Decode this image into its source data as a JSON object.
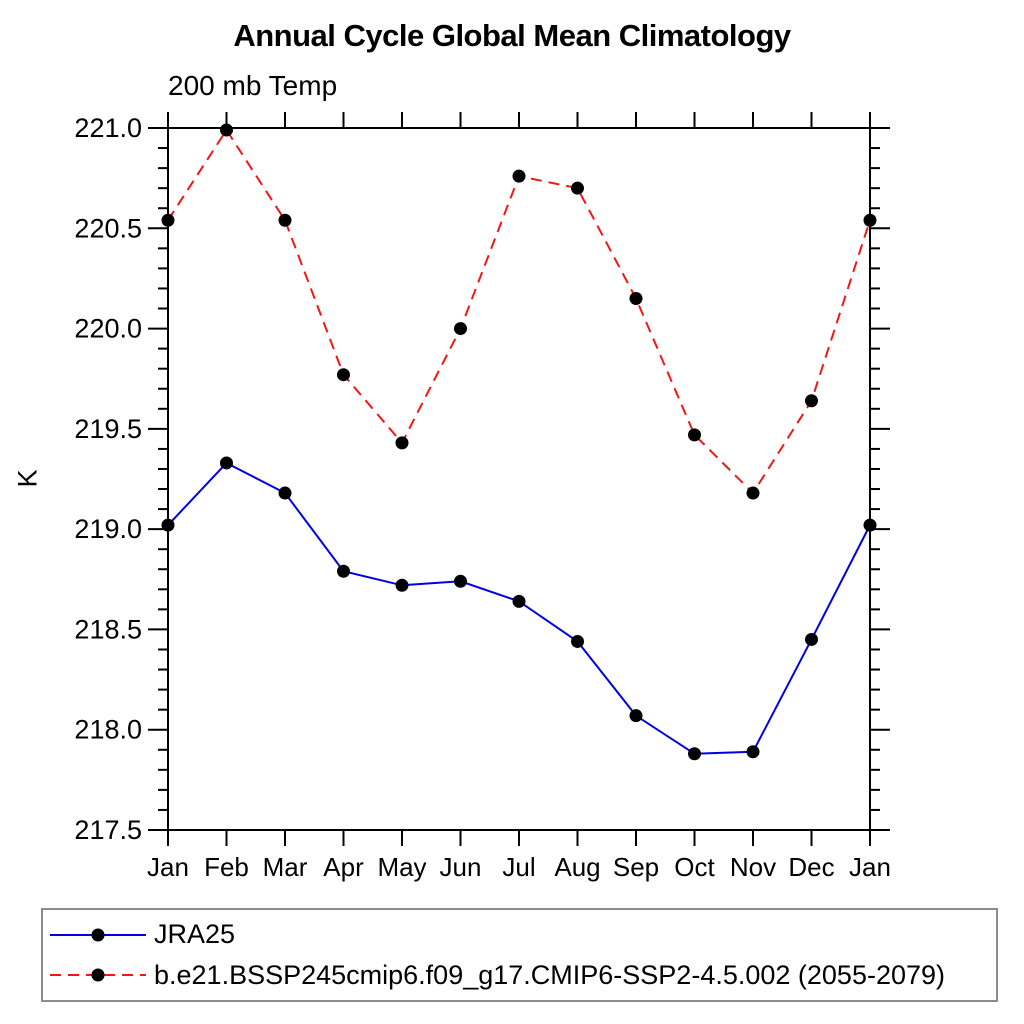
{
  "chart_data": {
    "type": "line",
    "title": "Annual Cycle Global Mean Climatology",
    "subtitle": "200 mb Temp",
    "ylabel": "K",
    "xlabel": "",
    "categories": [
      "Jan",
      "Feb",
      "Mar",
      "Apr",
      "May",
      "Jun",
      "Jul",
      "Aug",
      "Sep",
      "Oct",
      "Nov",
      "Dec",
      "Jan"
    ],
    "ylim": [
      217.5,
      221.0
    ],
    "yticks": [
      217.5,
      218.0,
      218.5,
      219.0,
      219.5,
      220.0,
      220.5,
      221.0
    ],
    "ytick_minor_step": 0.1,
    "grid": false,
    "axes_frame": true,
    "tick_direction": "out",
    "legend_position": "bottom",
    "marker": "filled-circle",
    "marker_color": "#000000",
    "frame_color": "#000000",
    "series": [
      {
        "name": "JRA25",
        "color": "#0000e0",
        "style": "solid",
        "values": [
          219.02,
          219.33,
          219.18,
          218.79,
          218.72,
          218.74,
          218.64,
          218.44,
          218.07,
          217.88,
          217.89,
          218.45,
          219.02
        ]
      },
      {
        "name": "b.e21.BSSP245cmip6.f09_g17.CMIP6-SSP2-4.5.002 (2055-2079)",
        "color": "#f41616",
        "style": "dashed",
        "values": [
          220.54,
          220.99,
          220.54,
          219.77,
          219.43,
          220.0,
          220.76,
          220.7,
          220.15,
          219.47,
          219.18,
          219.64,
          220.54
        ]
      }
    ]
  }
}
